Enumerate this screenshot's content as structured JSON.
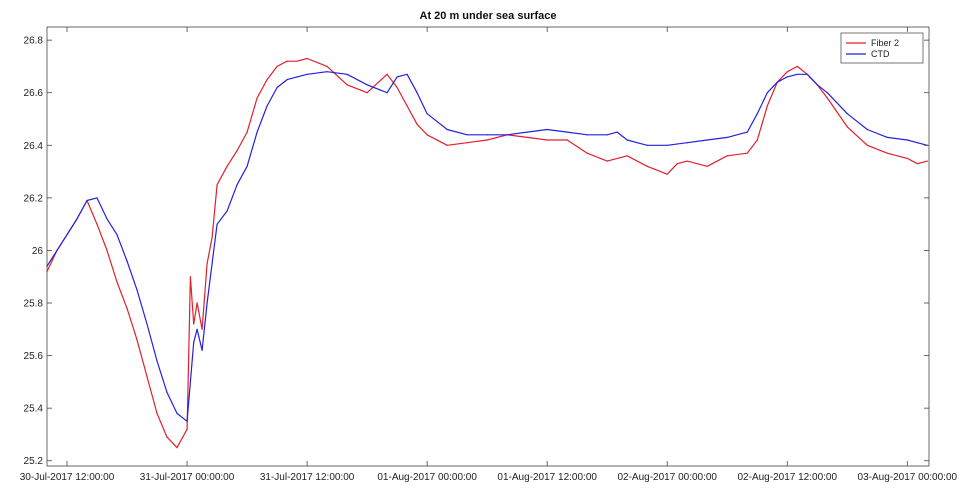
{
  "chart_data": {
    "type": "line",
    "title": "At 20 m under sea surface",
    "xlabel": "",
    "ylabel": "",
    "x_start": "2017-07-30T12:00:00",
    "x_ticks": [
      {
        "t": "2017-07-30T12:00:00",
        "label": "30-Jul-2017 12:00:00"
      },
      {
        "t": "2017-07-31T00:00:00",
        "label": "31-Jul-2017 00:00:00"
      },
      {
        "t": "2017-07-31T12:00:00",
        "label": "31-Jul-2017 12:00:00"
      },
      {
        "t": "2017-08-01T00:00:00",
        "label": "01-Aug-2017 00:00:00"
      },
      {
        "t": "2017-08-01T12:00:00",
        "label": "01-Aug-2017 12:00:00"
      },
      {
        "t": "2017-08-02T00:00:00",
        "label": "02-Aug-2017 00:00:00"
      },
      {
        "t": "2017-08-02T12:00:00",
        "label": "02-Aug-2017 12:00:00"
      },
      {
        "t": "2017-08-03T00:00:00",
        "label": "03-Aug-2017 00:00:00"
      }
    ],
    "xlim": [
      "2017-07-30T10:00:00",
      "2017-08-03T02:10:00"
    ],
    "ylim": [
      25.18,
      26.85
    ],
    "y_ticks": [
      25.2,
      25.4,
      25.6,
      25.8,
      26,
      26.2,
      26.4,
      26.6,
      26.8
    ],
    "y_tick_labels": [
      "25.2",
      "25.4",
      "25.6",
      "25.8",
      "26",
      "26.2",
      "26.4",
      "26.6",
      "26.8"
    ],
    "legend": {
      "position": "top-right"
    },
    "grid": false,
    "series": [
      {
        "name": "Fiber 2",
        "color": "#e0202a",
        "x": [
          "2017-07-30T10:00:00",
          "2017-07-30T11:00:00",
          "2017-07-30T12:00:00",
          "2017-07-30T13:00:00",
          "2017-07-30T14:00:00",
          "2017-07-30T15:00:00",
          "2017-07-30T16:00:00",
          "2017-07-30T17:00:00",
          "2017-07-30T18:00:00",
          "2017-07-30T19:00:00",
          "2017-07-30T20:00:00",
          "2017-07-30T21:00:00",
          "2017-07-30T22:00:00",
          "2017-07-30T23:00:00",
          "2017-07-31T00:00:00",
          "2017-07-31T00:20:00",
          "2017-07-31T00:40:00",
          "2017-07-31T01:00:00",
          "2017-07-31T01:30:00",
          "2017-07-31T02:00:00",
          "2017-07-31T02:30:00",
          "2017-07-31T03:00:00",
          "2017-07-31T04:00:00",
          "2017-07-31T05:00:00",
          "2017-07-31T06:00:00",
          "2017-07-31T07:00:00",
          "2017-07-31T08:00:00",
          "2017-07-31T09:00:00",
          "2017-07-31T10:00:00",
          "2017-07-31T11:00:00",
          "2017-07-31T12:00:00",
          "2017-07-31T14:00:00",
          "2017-07-31T16:00:00",
          "2017-07-31T18:00:00",
          "2017-07-31T20:00:00",
          "2017-07-31T21:00:00",
          "2017-07-31T22:00:00",
          "2017-07-31T23:00:00",
          "2017-08-01T00:00:00",
          "2017-08-01T02:00:00",
          "2017-08-01T04:00:00",
          "2017-08-01T06:00:00",
          "2017-08-01T08:00:00",
          "2017-08-01T10:00:00",
          "2017-08-01T12:00:00",
          "2017-08-01T14:00:00",
          "2017-08-01T16:00:00",
          "2017-08-01T18:00:00",
          "2017-08-01T20:00:00",
          "2017-08-01T22:00:00",
          "2017-08-02T00:00:00",
          "2017-08-02T01:00:00",
          "2017-08-02T02:00:00",
          "2017-08-02T04:00:00",
          "2017-08-02T06:00:00",
          "2017-08-02T08:00:00",
          "2017-08-02T09:00:00",
          "2017-08-02T10:00:00",
          "2017-08-02T11:00:00",
          "2017-08-02T12:00:00",
          "2017-08-02T13:00:00",
          "2017-08-02T14:00:00",
          "2017-08-02T15:00:00",
          "2017-08-02T16:00:00",
          "2017-08-02T18:00:00",
          "2017-08-02T20:00:00",
          "2017-08-02T22:00:00",
          "2017-08-03T00:00:00",
          "2017-08-03T01:00:00",
          "2017-08-03T02:00:00"
        ],
        "values": [
          25.92,
          26.0,
          26.06,
          26.12,
          26.19,
          26.1,
          26.0,
          25.88,
          25.78,
          25.66,
          25.52,
          25.38,
          25.29,
          25.25,
          25.32,
          25.9,
          25.72,
          25.8,
          25.7,
          25.95,
          26.05,
          26.25,
          26.32,
          26.38,
          26.45,
          26.58,
          26.65,
          26.7,
          26.72,
          26.72,
          26.73,
          26.7,
          26.63,
          26.6,
          26.67,
          26.62,
          26.55,
          26.48,
          26.44,
          26.4,
          26.41,
          26.42,
          26.44,
          26.43,
          26.42,
          26.42,
          26.37,
          26.34,
          26.36,
          26.32,
          26.29,
          26.33,
          26.34,
          26.32,
          26.36,
          26.37,
          26.42,
          26.55,
          26.64,
          26.68,
          26.7,
          26.67,
          26.63,
          26.58,
          26.47,
          26.4,
          26.37,
          26.35,
          26.33,
          26.34
        ]
      },
      {
        "name": "CTD",
        "color": "#2222dd",
        "x": [
          "2017-07-30T10:00:00",
          "2017-07-30T11:00:00",
          "2017-07-30T12:00:00",
          "2017-07-30T13:00:00",
          "2017-07-30T14:00:00",
          "2017-07-30T15:00:00",
          "2017-07-30T16:00:00",
          "2017-07-30T17:00:00",
          "2017-07-30T18:00:00",
          "2017-07-30T19:00:00",
          "2017-07-30T20:00:00",
          "2017-07-30T21:00:00",
          "2017-07-30T22:00:00",
          "2017-07-30T23:00:00",
          "2017-07-31T00:00:00",
          "2017-07-31T00:20:00",
          "2017-07-31T00:40:00",
          "2017-07-31T01:00:00",
          "2017-07-31T01:30:00",
          "2017-07-31T02:00:00",
          "2017-07-31T02:30:00",
          "2017-07-31T03:00:00",
          "2017-07-31T04:00:00",
          "2017-07-31T05:00:00",
          "2017-07-31T06:00:00",
          "2017-07-31T07:00:00",
          "2017-07-31T08:00:00",
          "2017-07-31T09:00:00",
          "2017-07-31T10:00:00",
          "2017-07-31T11:00:00",
          "2017-07-31T12:00:00",
          "2017-07-31T14:00:00",
          "2017-07-31T16:00:00",
          "2017-07-31T18:00:00",
          "2017-07-31T20:00:00",
          "2017-07-31T21:00:00",
          "2017-07-31T22:00:00",
          "2017-07-31T23:00:00",
          "2017-08-01T00:00:00",
          "2017-08-01T02:00:00",
          "2017-08-01T04:00:00",
          "2017-08-01T06:00:00",
          "2017-08-01T08:00:00",
          "2017-08-01T10:00:00",
          "2017-08-01T12:00:00",
          "2017-08-01T14:00:00",
          "2017-08-01T16:00:00",
          "2017-08-01T18:00:00",
          "2017-08-01T19:00:00",
          "2017-08-01T20:00:00",
          "2017-08-01T22:00:00",
          "2017-08-02T00:00:00",
          "2017-08-02T02:00:00",
          "2017-08-02T04:00:00",
          "2017-08-02T06:00:00",
          "2017-08-02T08:00:00",
          "2017-08-02T09:00:00",
          "2017-08-02T10:00:00",
          "2017-08-02T11:00:00",
          "2017-08-02T12:00:00",
          "2017-08-02T13:00:00",
          "2017-08-02T14:00:00",
          "2017-08-02T15:00:00",
          "2017-08-02T16:00:00",
          "2017-08-02T18:00:00",
          "2017-08-02T20:00:00",
          "2017-08-02T22:00:00",
          "2017-08-03T00:00:00",
          "2017-08-03T01:00:00",
          "2017-08-03T02:00:00"
        ],
        "values": [
          25.94,
          26.0,
          26.06,
          26.12,
          26.19,
          26.2,
          26.12,
          26.06,
          25.96,
          25.85,
          25.72,
          25.58,
          25.46,
          25.38,
          25.35,
          25.5,
          25.65,
          25.7,
          25.62,
          25.8,
          25.95,
          26.1,
          26.15,
          26.25,
          26.32,
          26.45,
          26.55,
          26.62,
          26.65,
          26.66,
          26.67,
          26.68,
          26.67,
          26.63,
          26.6,
          26.66,
          26.67,
          26.6,
          26.52,
          26.46,
          26.44,
          26.44,
          26.44,
          26.45,
          26.46,
          26.45,
          26.44,
          26.44,
          26.45,
          26.42,
          26.4,
          26.4,
          26.41,
          26.42,
          26.43,
          26.45,
          26.52,
          26.6,
          26.64,
          26.66,
          26.67,
          26.67,
          26.63,
          26.6,
          26.52,
          26.46,
          26.43,
          26.42,
          26.41,
          26.4
        ]
      }
    ]
  }
}
